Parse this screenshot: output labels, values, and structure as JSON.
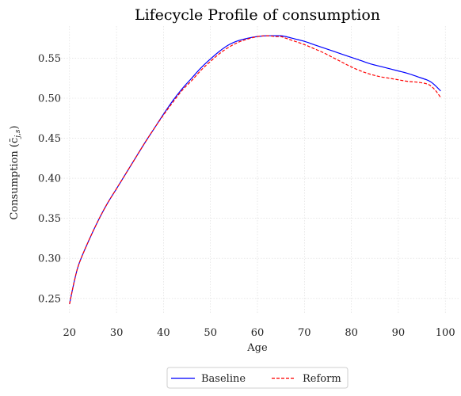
{
  "chart_data": {
    "type": "line",
    "title": "Lifecycle Profile of consumption",
    "xlabel": "Age",
    "ylabel": "Consumption (c̄",
    "ylabel_sub": "j,s",
    "ylabel_tail": ")",
    "xlim": [
      17,
      103
    ],
    "ylim": [
      0.23,
      0.59
    ],
    "xticks": [
      20,
      30,
      40,
      50,
      60,
      70,
      80,
      90,
      100
    ],
    "yticks": [
      0.25,
      0.3,
      0.35,
      0.4,
      0.45,
      0.5,
      0.55
    ],
    "grid": true,
    "legend_position": "bottom-center",
    "x": [
      20,
      21,
      22,
      24,
      26,
      28,
      30,
      32,
      34,
      36,
      38,
      40,
      42,
      44,
      46,
      48,
      50,
      52,
      54,
      56,
      58,
      60,
      62,
      64,
      65,
      66,
      68,
      70,
      72,
      74,
      76,
      78,
      80,
      82,
      84,
      86,
      88,
      90,
      92,
      94,
      96,
      97,
      98,
      99
    ],
    "series": [
      {
        "name": "Baseline",
        "color": "#0000ff",
        "style": "solid",
        "values": [
          0.243,
          0.271,
          0.293,
          0.321,
          0.346,
          0.368,
          0.387,
          0.406,
          0.425,
          0.444,
          0.462,
          0.48,
          0.497,
          0.512,
          0.525,
          0.538,
          0.549,
          0.559,
          0.567,
          0.572,
          0.575,
          0.577,
          0.578,
          0.578,
          0.578,
          0.577,
          0.574,
          0.571,
          0.567,
          0.563,
          0.559,
          0.555,
          0.551,
          0.547,
          0.543,
          0.54,
          0.537,
          0.534,
          0.531,
          0.527,
          0.523,
          0.52,
          0.515,
          0.509
        ]
      },
      {
        "name": "Reform",
        "color": "#ff0000",
        "style": "dashed",
        "values": [
          0.243,
          0.271,
          0.293,
          0.321,
          0.346,
          0.368,
          0.387,
          0.406,
          0.425,
          0.444,
          0.462,
          0.479,
          0.495,
          0.51,
          0.522,
          0.535,
          0.546,
          0.556,
          0.564,
          0.57,
          0.574,
          0.577,
          0.578,
          0.577,
          0.577,
          0.575,
          0.571,
          0.567,
          0.562,
          0.557,
          0.551,
          0.545,
          0.539,
          0.534,
          0.53,
          0.527,
          0.525,
          0.523,
          0.521,
          0.52,
          0.518,
          0.515,
          0.509,
          0.501
        ]
      }
    ]
  }
}
